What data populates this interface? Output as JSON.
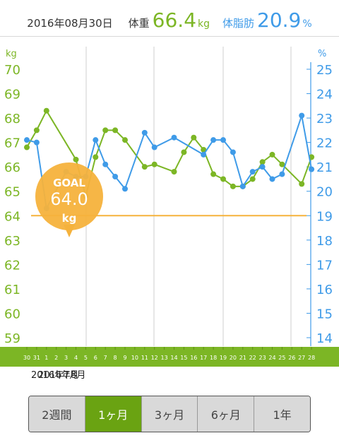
{
  "header": {
    "date": "2016年08月30日",
    "weight_label": "体重",
    "weight_value": "66.4",
    "weight_unit": "kg",
    "fat_label": "体脂肪",
    "fat_value": "20.9",
    "fat_unit": "%"
  },
  "goal": {
    "title": "GOAL",
    "value": "64.0",
    "unit": "kg"
  },
  "months": {
    "label_a": "2016年7月",
    "label_b": "2016年8月"
  },
  "tabs": [
    {
      "label": "2週間",
      "active": false
    },
    {
      "label": "1ヶ月",
      "active": true
    },
    {
      "label": "3ヶ月",
      "active": false
    },
    {
      "label": "6ヶ月",
      "active": false
    },
    {
      "label": "1年",
      "active": false
    }
  ],
  "colors": {
    "weight": "#7cb625",
    "fat": "#3f9be8",
    "goal": "#f5b23c",
    "grid": "#cfcfcf"
  },
  "chart_data": {
    "type": "line",
    "x": [
      "30",
      "31",
      "1",
      "2",
      "3",
      "4",
      "5",
      "6",
      "7",
      "8",
      "9",
      "10",
      "11",
      "12",
      "13",
      "14",
      "15",
      "16",
      "17",
      "18",
      "19",
      "20",
      "21",
      "22",
      "23",
      "24",
      "25",
      "26",
      "27",
      "28"
    ],
    "left_axis": {
      "label": "kg",
      "ticks": [
        59,
        60,
        61,
        62,
        63,
        64,
        65,
        66,
        67,
        68,
        69,
        70
      ],
      "range": [
        59,
        70
      ]
    },
    "right_axis": {
      "label": "%",
      "ticks": [
        14,
        15,
        16,
        17,
        18,
        19,
        20,
        21,
        22,
        23,
        24,
        25
      ],
      "range": [
        14,
        25
      ]
    },
    "goal_line": 64.0,
    "series": [
      {
        "axis": "left",
        "color": "#7cb625",
        "points": [
          {
            "x": "30",
            "y": 66.8
          },
          {
            "x": "31",
            "y": 67.5
          },
          {
            "x": "1",
            "y": 68.3
          },
          {
            "x": "4",
            "y": 66.3
          },
          {
            "x": "5",
            "y": 64.8
          },
          {
            "x": "6",
            "y": 66.4
          },
          {
            "x": "7",
            "y": 67.5
          },
          {
            "x": "8",
            "y": 67.5
          },
          {
            "x": "9",
            "y": 67.1
          },
          {
            "x": "11",
            "y": 66.0
          },
          {
            "x": "12",
            "y": 66.1
          },
          {
            "x": "14",
            "y": 65.8
          },
          {
            "x": "15",
            "y": 66.6
          },
          {
            "x": "16",
            "y": 67.2
          },
          {
            "x": "17",
            "y": 66.7
          },
          {
            "x": "18",
            "y": 65.7
          },
          {
            "x": "19",
            "y": 65.5
          },
          {
            "x": "20",
            "y": 65.2
          },
          {
            "x": "21",
            "y": 65.2
          },
          {
            "x": "22",
            "y": 65.5
          },
          {
            "x": "23",
            "y": 66.2
          },
          {
            "x": "24",
            "y": 66.5
          },
          {
            "x": "25",
            "y": 66.1
          },
          {
            "x": "27",
            "y": 65.3
          },
          {
            "x": "28",
            "y": 66.4
          }
        ]
      },
      {
        "axis": "right",
        "color": "#3f9be8",
        "points": [
          {
            "x": "30",
            "y": 22.1
          },
          {
            "x": "31",
            "y": 22.0
          },
          {
            "x": "1",
            "y": 19.3
          },
          {
            "x": "3",
            "y": 20.8
          },
          {
            "x": "4",
            "y": 20.6
          },
          {
            "x": "5",
            "y": 20.6
          },
          {
            "x": "6",
            "y": 22.1
          },
          {
            "x": "7",
            "y": 21.1
          },
          {
            "x": "8",
            "y": 20.6
          },
          {
            "x": "9",
            "y": 20.1
          },
          {
            "x": "11",
            "y": 22.4
          },
          {
            "x": "12",
            "y": 21.8
          },
          {
            "x": "14",
            "y": 22.2
          },
          {
            "x": "17",
            "y": 21.5
          },
          {
            "x": "18",
            "y": 22.1
          },
          {
            "x": "19",
            "y": 22.1
          },
          {
            "x": "20",
            "y": 21.6
          },
          {
            "x": "21",
            "y": 20.2
          },
          {
            "x": "22",
            "y": 20.8
          },
          {
            "x": "23",
            "y": 21.0
          },
          {
            "x": "24",
            "y": 20.5
          },
          {
            "x": "25",
            "y": 20.7
          },
          {
            "x": "27",
            "y": 23.1
          },
          {
            "x": "28",
            "y": 20.9
          }
        ]
      }
    ]
  }
}
